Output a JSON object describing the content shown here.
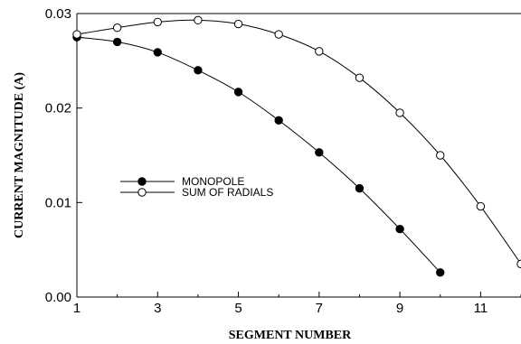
{
  "chart_data": {
    "type": "line",
    "title": "",
    "xlabel": "SEGMENT NUMBER",
    "ylabel": "CURRENT MAGNITUDE (A)",
    "xlim": [
      1,
      12
    ],
    "ylim": [
      0,
      0.03
    ],
    "x_ticks": [
      "1",
      "3",
      "5",
      "7",
      "9",
      "11"
    ],
    "x_tick_values": [
      1,
      3,
      5,
      7,
      9,
      11
    ],
    "y_ticks": [
      "0.00",
      "0.01",
      "0.02",
      "0.03"
    ],
    "y_tick_values": [
      0,
      0.01,
      0.02,
      0.03
    ],
    "grid": false,
    "legend_position": "center-left",
    "series": [
      {
        "name": "MONOPOLE",
        "marker": "filled-circle",
        "x": [
          1,
          2,
          3,
          4,
          5,
          6,
          7,
          8,
          9,
          10
        ],
        "values": [
          0.0275,
          0.027,
          0.0259,
          0.024,
          0.0217,
          0.0187,
          0.0153,
          0.0115,
          0.0072,
          0.0026
        ]
      },
      {
        "name": "SUM OF RADIALS",
        "marker": "open-circle",
        "x": [
          1,
          2,
          3,
          4,
          5,
          6,
          7,
          8,
          9,
          10,
          11,
          12
        ],
        "values": [
          0.0278,
          0.0285,
          0.0291,
          0.0293,
          0.0289,
          0.0278,
          0.026,
          0.0232,
          0.0195,
          0.015,
          0.0096,
          0.0035
        ]
      }
    ]
  }
}
